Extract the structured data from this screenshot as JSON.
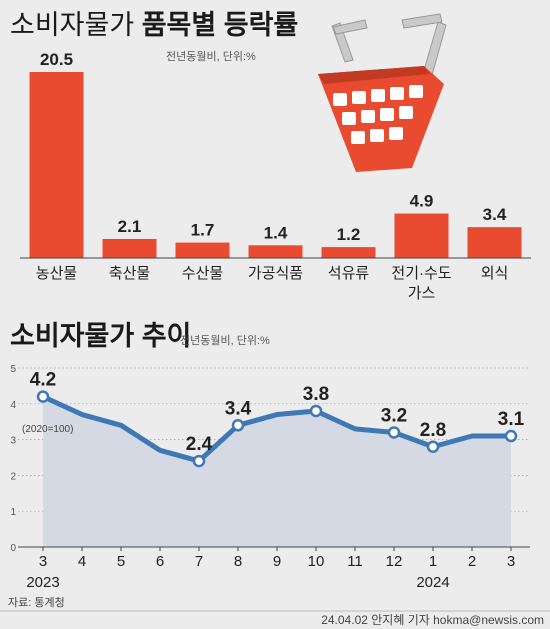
{
  "top": {
    "title_a": "소비자물가 ",
    "title_b": "품목별 등락률",
    "unit": "전년동월비, 단위:%"
  },
  "bottom": {
    "title_a": "소비자물가 추이",
    "unit": "전년동월비, 단위:%",
    "base_note": "(2020=100)"
  },
  "source": "자료: 통계청",
  "credit": "24.04.02 안지혜 기자 hokma@newsis.com",
  "colors": {
    "bar": "#e84b30",
    "line": "#3f79b5",
    "area": "#d4d9e3",
    "background": "#ececec"
  },
  "chart_data": [
    {
      "type": "bar",
      "title": "소비자물가 품목별 등락률",
      "unit": "전년동월비, 단위:%",
      "categories": [
        [
          "농산물"
        ],
        [
          "축산물"
        ],
        [
          "수산물"
        ],
        [
          "가공식품"
        ],
        [
          "석유류"
        ],
        [
          "전기·수도",
          "가스"
        ],
        [
          "외식"
        ]
      ],
      "values": [
        20.5,
        2.1,
        1.7,
        1.4,
        1.2,
        4.9,
        3.4
      ],
      "value_labels": [
        "20.5",
        "2.1",
        "1.7",
        "1.4",
        "1.2",
        "4.9",
        "3.4"
      ],
      "ylim": [
        0,
        20.5
      ]
    },
    {
      "type": "area",
      "title": "소비자물가 추이",
      "unit": "전년동월비, 단위:%",
      "x": [
        "3",
        "4",
        "5",
        "6",
        "7",
        "8",
        "9",
        "10",
        "11",
        "12",
        "1",
        "2",
        "3"
      ],
      "years": [
        {
          "label": "2023",
          "at_index": 0
        },
        {
          "label": "2024",
          "at_index": 10
        }
      ],
      "values": [
        4.2,
        3.7,
        3.4,
        2.7,
        2.4,
        3.4,
        3.7,
        3.8,
        3.3,
        3.2,
        2.8,
        3.1,
        3.1
      ],
      "labeled_points": [
        {
          "index": 0,
          "label": "4.2"
        },
        {
          "index": 4,
          "label": "2.4"
        },
        {
          "index": 5,
          "label": "3.4"
        },
        {
          "index": 7,
          "label": "3.8"
        },
        {
          "index": 9,
          "label": "3.2"
        },
        {
          "index": 10,
          "label": "2.8"
        },
        {
          "index": 12,
          "label": "3.1"
        }
      ],
      "yticks": [
        "0",
        "1",
        "2",
        "3",
        "4",
        "5"
      ],
      "ylim": [
        0,
        5
      ]
    }
  ]
}
